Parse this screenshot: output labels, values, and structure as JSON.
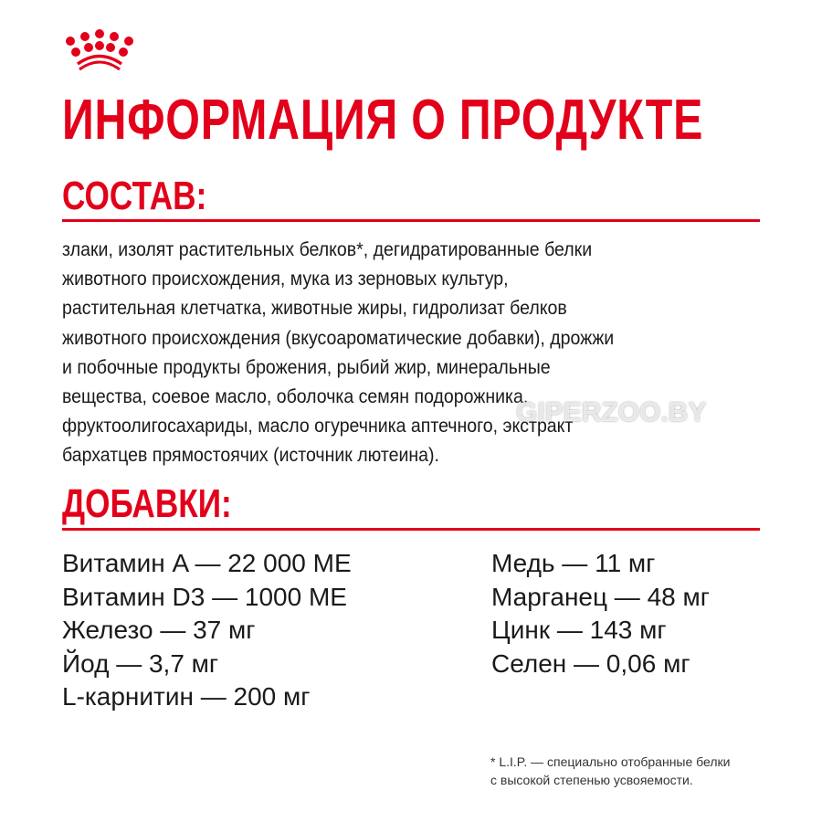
{
  "brand": {
    "logo": "crown-logo",
    "color": "#e2001a"
  },
  "title": "ИНФОРМАЦИЯ О ПРОДУКТЕ",
  "composition": {
    "heading": "СОСТАВ:",
    "lines": [
      "злаки, изолят растительных белков*, дегидратированные белки",
      "животного происхождения, мука из зерновых культур,",
      "растительная клетчатка, животные жиры, гидролизат белков",
      "животного происхождения (вкусоароматические добавки), дрожжи",
      "и побочные продукты брожения, рыбий жир, минеральные",
      "вещества, соевое масло, оболочка семян подорожника,",
      "фруктоолигосахариды, масло огуречника аптечного, экстракт",
      "бархатцев прямостоячих (источник лютеина)."
    ]
  },
  "additives": {
    "heading": "ДОБАВКИ:",
    "left": [
      "Витамин A — 22 000 МЕ",
      "Витамин D3 — 1000 МЕ",
      "Железо — 37 мг",
      "Йод — 3,7 мг",
      "L-карнитин — 200 мг"
    ],
    "right": [
      "Медь — 11 мг",
      "Марганец — 48 мг",
      "Цинк — 143 мг",
      "Селен — 0,06 мг"
    ]
  },
  "footnote": [
    "* L.I.P. — специально отобранные белки",
    "с высокой степенью усвояемости."
  ],
  "watermark": "GIPERZOO.BY"
}
